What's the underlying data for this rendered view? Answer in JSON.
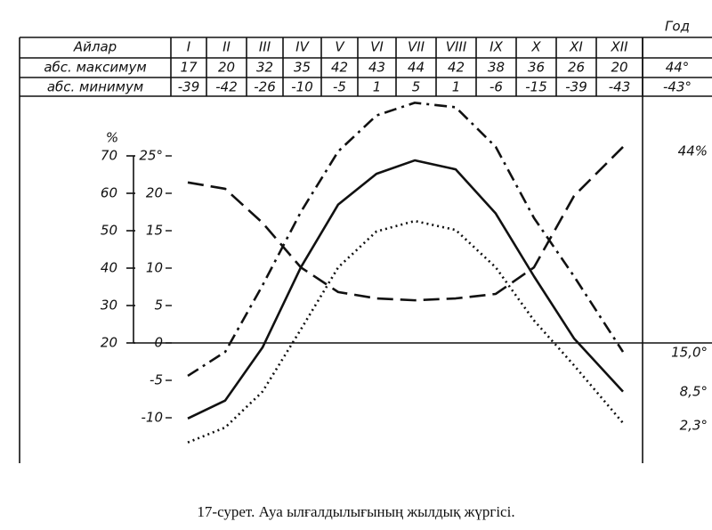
{
  "table": {
    "header": [
      "Айлар",
      "I",
      "II",
      "III",
      "IV",
      "V",
      "VI",
      "VII",
      "VIII",
      "IX",
      "X",
      "XI",
      "XII",
      "Год"
    ],
    "rows": [
      [
        "абс. максимум",
        "17",
        "20",
        "32",
        "35",
        "42",
        "43",
        "44",
        "42",
        "38",
        "36",
        "26",
        "20",
        "44°"
      ],
      [
        "абс. минимум",
        "-39",
        "-42",
        "-26",
        "-10",
        "-5",
        "1",
        "5",
        "1",
        "-6",
        "-15",
        "-39",
        "-43",
        "-43°"
      ]
    ]
  },
  "chart_data": {
    "type": "line",
    "caption": "17-сурет. Ауа ылғалдылығының жылдық жүргісі.",
    "y2_label": "%",
    "categories": [
      "I",
      "II",
      "III",
      "IV",
      "V",
      "VI",
      "VII",
      "VIII",
      "IX",
      "X",
      "XI",
      "XII"
    ],
    "ylim": [
      -14,
      33
    ],
    "yticks": [
      -10,
      -5,
      0,
      5,
      10,
      15,
      20,
      {
        "value": 25,
        "label": "25°"
      }
    ],
    "y2lim": [
      -8,
      86
    ],
    "y2ticks": [
      20,
      30,
      40,
      50,
      60,
      70
    ],
    "series": [
      {
        "style": "dash-dot",
        "color": "#111",
        "values": [
          -4.4,
          -1.2,
          7.7,
          17.5,
          25.6,
          30.4,
          32.1,
          31.5,
          26.2,
          16.7,
          8.9,
          -1.2
        ]
      },
      {
        "style": "solid",
        "color": "#111",
        "values": [
          -10.1,
          -7.7,
          -0.6,
          10.1,
          18.5,
          22.6,
          24.4,
          23.2,
          17.3,
          8.9,
          0.6,
          -6.5
        ]
      },
      {
        "style": "dotted",
        "color": "#111",
        "values": [
          -13.3,
          -11.3,
          -6.5,
          1.8,
          10.1,
          14.9,
          16.3,
          15.1,
          10.1,
          3.0,
          -3.0,
          -10.7
        ]
      },
      {
        "style": "dashed",
        "color": "#111",
        "axis": "y2",
        "values": [
          62.9,
          61.2,
          52.1,
          40.2,
          33.6,
          31.9,
          31.4,
          31.9,
          33.1,
          40.2,
          59.3,
          72.4
        ]
      }
    ],
    "annotations": [
      "44%",
      "15,0°",
      "8,5°",
      "2,3°"
    ]
  }
}
